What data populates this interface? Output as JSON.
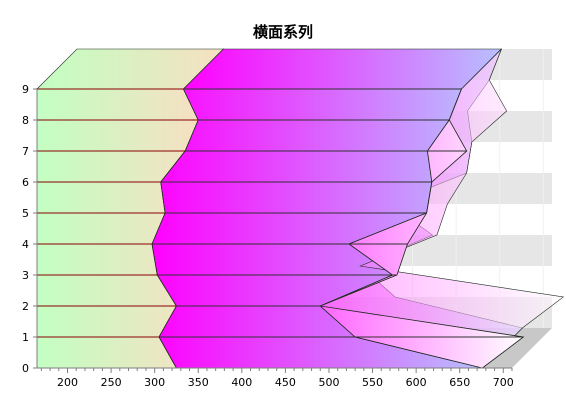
{
  "chart_data": {
    "type": "area",
    "orientation": "horizontal",
    "stacked": true,
    "three_d": true,
    "title": "横面系列",
    "xlabel": "",
    "ylabel": "",
    "xlim": [
      165,
      710
    ],
    "ylim": [
      0,
      9
    ],
    "x_ticks": [
      200,
      250,
      300,
      350,
      400,
      450,
      500,
      550,
      600,
      650,
      700
    ],
    "y_ticks": [
      0,
      1,
      2,
      3,
      4,
      5,
      6,
      7,
      8,
      9
    ],
    "grid": true,
    "legend": "none",
    "categories": [
      0,
      1,
      2,
      3,
      4,
      5,
      6,
      7,
      8,
      9
    ],
    "series": [
      {
        "cumulative": [
          325,
          305,
          325,
          303,
          297,
          312,
          307,
          335,
          350,
          333
        ],
        "color_from": "#c2ffc2",
        "color_to": "#f6e0c2"
      },
      {
        "cumulative": [
          676,
          530,
          490,
          573,
          523,
          612,
          618,
          613,
          638,
          652
        ],
        "color_from": "#ff00ff",
        "color_to": "#b8c0ff"
      },
      {
        "cumulative": [
          0,
          723,
          0,
          578,
          590,
          0,
          0,
          658,
          0,
          0
        ],
        "color_from": "#ff66ff",
        "color_to": "#ffffff"
      }
    ],
    "colors": {
      "title": "#2a2ad6",
      "outline": "#1f2a1f",
      "grid_band": "#e6e6e6",
      "axis_line": "#7f7f7f",
      "side_wall": "#c8c8c8",
      "series_line": "#8a0000"
    }
  }
}
